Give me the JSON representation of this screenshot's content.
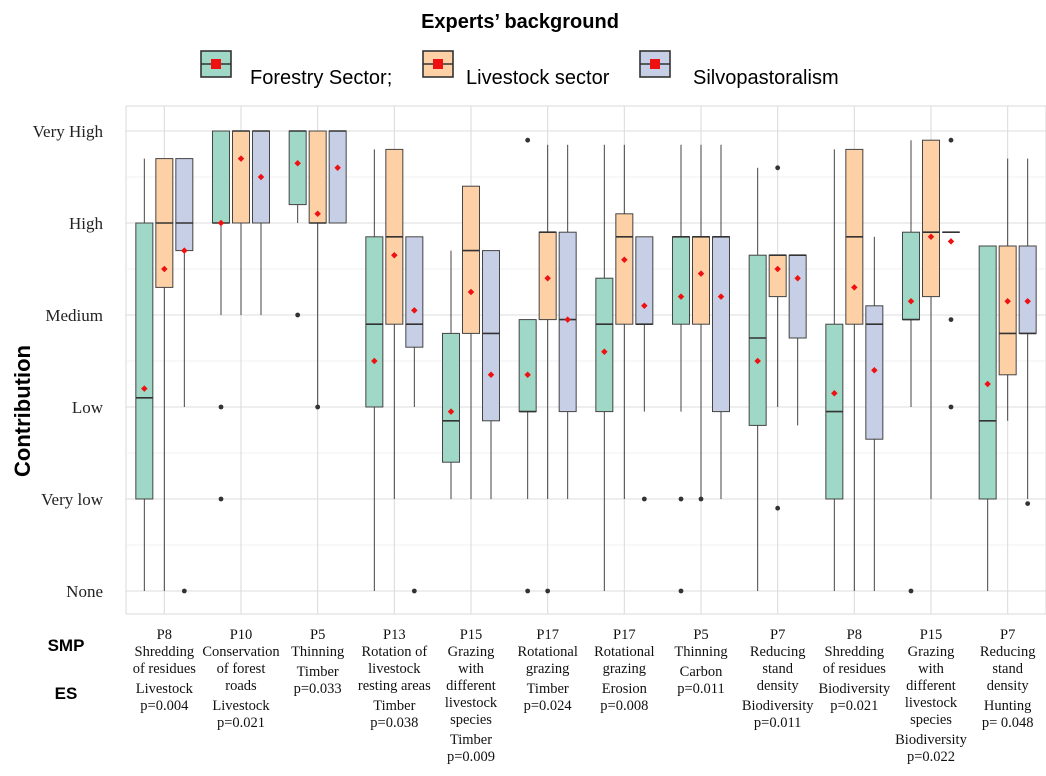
{
  "chart_data": {
    "type": "boxplot",
    "legend": {
      "title": "Experts’ background",
      "position": "top",
      "entries": [
        {
          "name": "Forestry Sector;",
          "color": "#9fd8c6"
        },
        {
          "name": "Livestock sector",
          "color": "#fdd0a6"
        },
        {
          "name": "Silvopastoralism",
          "color": "#c7cfe6"
        }
      ]
    },
    "ylabel": "Contribution",
    "y_ticks": [
      "None",
      "Very low",
      "Low",
      "Medium",
      "High",
      "Very High"
    ],
    "ylim": [
      0,
      5
    ],
    "row_labels": {
      "smp": "SMP",
      "es": "ES"
    },
    "mean_marker_color": "#ee1111",
    "outlier_color": "#333333",
    "groups": [
      {
        "smp": [
          "P8",
          "Shredding",
          "of residues"
        ],
        "es": [
          "Livestock",
          "p=0.004"
        ],
        "boxes": [
          {
            "series": "Forestry Sector;",
            "whisker_low": 0,
            "q1": 1.0,
            "median": 2.1,
            "q3": 4.0,
            "whisker_high": 4.7,
            "mean": 2.2,
            "outliers": []
          },
          {
            "series": "Livestock sector",
            "whisker_low": 0,
            "q1": 3.3,
            "median": 4.0,
            "q3": 4.7,
            "whisker_high": 4.7,
            "mean": 3.5,
            "outliers": []
          },
          {
            "series": "Silvopastoralism",
            "whisker_low": 2.0,
            "q1": 3.7,
            "median": 4.0,
            "q3": 4.7,
            "whisker_high": 4.7,
            "mean": 3.7,
            "outliers": [
              0
            ]
          }
        ]
      },
      {
        "smp": [
          "P10",
          "Conservation",
          "of forest",
          "roads"
        ],
        "es": [
          "Livestock",
          "p=0.021"
        ],
        "boxes": [
          {
            "series": "Forestry Sector;",
            "whisker_low": 3.0,
            "q1": 4.0,
            "median": 4.0,
            "q3": 5.0,
            "whisker_high": 5.0,
            "mean": 4.0,
            "outliers": [
              1,
              2
            ]
          },
          {
            "series": "Livestock sector",
            "whisker_low": 3.0,
            "q1": 4.0,
            "median": 5.0,
            "q3": 5.0,
            "whisker_high": 5.0,
            "mean": 4.7,
            "outliers": []
          },
          {
            "series": "Silvopastoralism",
            "whisker_low": 3.0,
            "q1": 4.0,
            "median": 5.0,
            "q3": 5.0,
            "whisker_high": 5.0,
            "mean": 4.5,
            "outliers": []
          }
        ]
      },
      {
        "smp": [
          "P5",
          "Thinning"
        ],
        "es": [
          "Timber",
          "p=0.033"
        ],
        "boxes": [
          {
            "series": "Forestry Sector;",
            "whisker_low": 4.0,
            "q1": 4.2,
            "median": 5.0,
            "q3": 5.0,
            "whisker_high": 5.0,
            "mean": 4.65,
            "outliers": [
              3
            ]
          },
          {
            "series": "Livestock sector",
            "whisker_low": 2.0,
            "q1": 4.0,
            "median": 4.0,
            "q3": 5.0,
            "whisker_high": 5.0,
            "mean": 4.1,
            "outliers": [
              2
            ]
          },
          {
            "series": "Silvopastoralism",
            "whisker_low": 4.0,
            "q1": 4.0,
            "median": 5.0,
            "q3": 5.0,
            "whisker_high": 5.0,
            "mean": 4.6,
            "outliers": []
          }
        ]
      },
      {
        "smp": [
          "P13",
          "Rotation of",
          "livestock",
          "resting areas"
        ],
        "es": [
          "Timber",
          "p=0.038"
        ],
        "boxes": [
          {
            "series": "Forestry Sector;",
            "whisker_low": 0,
            "q1": 2.0,
            "median": 2.9,
            "q3": 3.85,
            "whisker_high": 4.8,
            "mean": 2.5,
            "outliers": []
          },
          {
            "series": "Livestock sector",
            "whisker_low": 1.0,
            "q1": 2.9,
            "median": 3.85,
            "q3": 4.8,
            "whisker_high": 4.8,
            "mean": 3.65,
            "outliers": []
          },
          {
            "series": "Silvopastoralism",
            "whisker_low": 2.0,
            "q1": 2.65,
            "median": 2.9,
            "q3": 3.85,
            "whisker_high": 3.85,
            "mean": 3.05,
            "outliers": [
              0
            ]
          }
        ]
      },
      {
        "smp": [
          "P15",
          "Grazing",
          "with",
          "different",
          "livestock",
          "species"
        ],
        "es": [
          "Timber",
          "p=0.009"
        ],
        "boxes": [
          {
            "series": "Forestry Sector;",
            "whisker_low": 1.0,
            "q1": 1.4,
            "median": 1.85,
            "q3": 2.8,
            "whisker_high": 3.7,
            "mean": 1.95,
            "outliers": []
          },
          {
            "series": "Livestock sector",
            "whisker_low": 1.0,
            "q1": 2.8,
            "median": 3.7,
            "q3": 4.4,
            "whisker_high": 4.4,
            "mean": 3.25,
            "outliers": []
          },
          {
            "series": "Silvopastoralism",
            "whisker_low": 1.0,
            "q1": 1.85,
            "median": 2.8,
            "q3": 3.7,
            "whisker_high": 3.7,
            "mean": 2.35,
            "outliers": []
          }
        ]
      },
      {
        "smp": [
          "P17",
          "Rotational",
          "grazing"
        ],
        "es": [
          "Timber",
          "p=0.024"
        ],
        "boxes": [
          {
            "series": "Forestry Sector;",
            "whisker_low": 1.0,
            "q1": 1.95,
            "median": 1.95,
            "q3": 2.95,
            "whisker_high": 2.95,
            "mean": 2.35,
            "outliers": [
              0,
              4.9
            ]
          },
          {
            "series": "Livestock sector",
            "whisker_low": 1.0,
            "q1": 2.95,
            "median": 3.9,
            "q3": 3.9,
            "whisker_high": 4.85,
            "mean": 3.4,
            "outliers": [
              0
            ]
          },
          {
            "series": "Silvopastoralism",
            "whisker_low": 1.0,
            "q1": 1.95,
            "median": 2.95,
            "q3": 3.9,
            "whisker_high": 4.85,
            "mean": 2.95,
            "outliers": []
          }
        ]
      },
      {
        "smp": [
          "P17",
          "Rotational",
          "grazing"
        ],
        "es": [
          "Erosion",
          "p=0.008"
        ],
        "boxes": [
          {
            "series": "Forestry Sector;",
            "whisker_low": 0,
            "q1": 1.95,
            "median": 2.9,
            "q3": 3.4,
            "whisker_high": 4.85,
            "mean": 2.6,
            "outliers": []
          },
          {
            "series": "Livestock sector",
            "whisker_low": 1.0,
            "q1": 2.9,
            "median": 3.85,
            "q3": 4.1,
            "whisker_high": 4.85,
            "mean": 3.6,
            "outliers": []
          },
          {
            "series": "Silvopastoralism",
            "whisker_low": 1.95,
            "q1": 2.9,
            "median": 2.9,
            "q3": 3.85,
            "whisker_high": 3.85,
            "mean": 3.1,
            "outliers": [
              1.0
            ]
          }
        ]
      },
      {
        "smp": [
          "P5",
          "Thinning"
        ],
        "es": [
          "Carbon",
          "p=0.011"
        ],
        "boxes": [
          {
            "series": "Forestry Sector;",
            "whisker_low": 1.95,
            "q1": 2.9,
            "median": 3.85,
            "q3": 3.85,
            "whisker_high": 4.85,
            "mean": 3.2,
            "outliers": [
              0,
              1.0
            ]
          },
          {
            "series": "Livestock sector",
            "whisker_low": 1.0,
            "q1": 2.9,
            "median": 3.85,
            "q3": 3.85,
            "whisker_high": 4.85,
            "mean": 3.45,
            "outliers": [
              1.0
            ]
          },
          {
            "series": "Silvopastoralism",
            "whisker_low": 1.0,
            "q1": 1.95,
            "median": 3.85,
            "q3": 3.85,
            "whisker_high": 4.85,
            "mean": 3.2,
            "outliers": []
          }
        ]
      },
      {
        "smp": [
          "P7",
          "Reducing",
          "stand",
          "density"
        ],
        "es": [
          "Biodiversity",
          "p=0.011"
        ],
        "boxes": [
          {
            "series": "Forestry Sector;",
            "whisker_low": 0,
            "q1": 1.8,
            "median": 2.75,
            "q3": 3.65,
            "whisker_high": 4.6,
            "mean": 2.5,
            "outliers": []
          },
          {
            "series": "Livestock sector",
            "whisker_low": 2.0,
            "q1": 3.2,
            "median": 3.65,
            "q3": 3.65,
            "whisker_high": 3.65,
            "mean": 3.5,
            "outliers": [
              0.9,
              4.6
            ]
          },
          {
            "series": "Silvopastoralism",
            "whisker_low": 1.8,
            "q1": 2.75,
            "median": 3.65,
            "q3": 3.65,
            "whisker_high": 3.65,
            "mean": 3.4,
            "outliers": []
          }
        ]
      },
      {
        "smp": [
          "P8",
          "Shredding",
          "of residues"
        ],
        "es": [
          "Biodiversity",
          "p=0.021"
        ],
        "boxes": [
          {
            "series": "Forestry Sector;",
            "whisker_low": 0,
            "q1": 1.0,
            "median": 1.95,
            "q3": 2.9,
            "whisker_high": 4.8,
            "mean": 2.15,
            "outliers": []
          },
          {
            "series": "Livestock sector",
            "whisker_low": 0,
            "q1": 2.9,
            "median": 3.85,
            "q3": 4.8,
            "whisker_high": 4.8,
            "mean": 3.3,
            "outliers": []
          },
          {
            "series": "Silvopastoralism",
            "whisker_low": 0,
            "q1": 1.65,
            "median": 2.9,
            "q3": 3.1,
            "whisker_high": 3.85,
            "mean": 2.4,
            "outliers": []
          }
        ]
      },
      {
        "smp": [
          "P15",
          "Grazing",
          "with",
          "different",
          "livestock",
          "species"
        ],
        "es": [
          "Biodiversity",
          "p=0.022"
        ],
        "boxes": [
          {
            "series": "Forestry Sector;",
            "whisker_low": 2.0,
            "q1": 2.95,
            "median": 2.95,
            "q3": 3.9,
            "whisker_high": 4.9,
            "mean": 3.15,
            "outliers": [
              0
            ]
          },
          {
            "series": "Livestock sector",
            "whisker_low": 1.0,
            "q1": 3.2,
            "median": 3.9,
            "q3": 4.9,
            "whisker_high": 4.9,
            "mean": 3.85,
            "outliers": []
          },
          {
            "series": "Silvopastoralism",
            "whisker_low": 3.9,
            "q1": 3.9,
            "median": 3.9,
            "q3": 3.9,
            "whisker_high": 3.9,
            "mean": 3.8,
            "outliers": [
              2.0,
              2.95,
              4.9
            ]
          }
        ]
      },
      {
        "smp": [
          "P7",
          "Reducing",
          "stand",
          "density"
        ],
        "es": [
          "Hunting",
          "p= 0.048"
        ],
        "boxes": [
          {
            "series": "Forestry Sector;",
            "whisker_low": 0,
            "q1": 1.0,
            "median": 1.85,
            "q3": 3.75,
            "whisker_high": 3.75,
            "mean": 2.25,
            "outliers": []
          },
          {
            "series": "Livestock sector",
            "whisker_low": 1.85,
            "q1": 2.35,
            "median": 2.8,
            "q3": 3.75,
            "whisker_high": 4.7,
            "mean": 3.15,
            "outliers": []
          },
          {
            "series": "Silvopastoralism",
            "whisker_low": 1.0,
            "q1": 2.8,
            "median": 2.8,
            "q3": 3.75,
            "whisker_high": 4.7,
            "mean": 3.15,
            "outliers": [
              0.95
            ]
          }
        ]
      }
    ]
  }
}
